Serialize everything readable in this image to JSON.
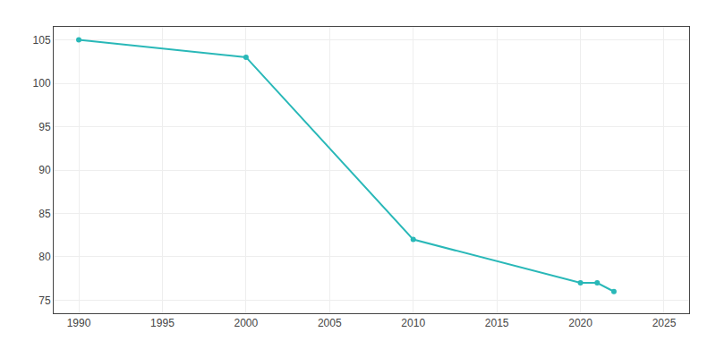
{
  "chart_data": {
    "type": "line",
    "x": [
      1990,
      2000,
      2010,
      2020,
      2021,
      2022
    ],
    "values": [
      105,
      103,
      82,
      77,
      77,
      76
    ],
    "color": "#29B8B8",
    "marker": "circle",
    "xlim": [
      1988.5,
      2026.5
    ],
    "ylim": [
      73.5,
      106.5
    ],
    "xticks": [
      1990,
      1995,
      2000,
      2005,
      2010,
      2015,
      2020,
      2025
    ],
    "yticks": [
      75,
      80,
      85,
      90,
      95,
      100,
      105
    ],
    "grid": true
  }
}
